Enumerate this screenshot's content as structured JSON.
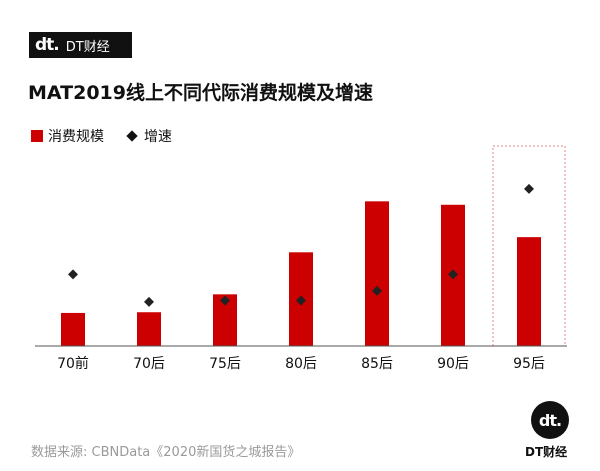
{
  "brand": {
    "logo": "dt.",
    "name": "DT财经"
  },
  "title": "MAT2019线上不同代际消费规模及增速",
  "legend": {
    "bar_label": "消费规模",
    "marker_label": "增速"
  },
  "colors": {
    "bar": "#cc0000",
    "marker": "#222222",
    "axis": "#555555",
    "highlight_border": "#e08a8a"
  },
  "chart_data": {
    "type": "bar",
    "categories": [
      "70前",
      "70后",
      "75后",
      "80后",
      "85后",
      "90后",
      "95后"
    ],
    "series": [
      {
        "name": "消费规模",
        "type": "bar",
        "values": [
          24,
          24.5,
          37.5,
          68,
          105,
          102.5,
          79
        ]
      },
      {
        "name": "增速",
        "type": "scatter",
        "marker": "diamond",
        "values": [
          52,
          32,
          33,
          33,
          40,
          52,
          114
        ]
      }
    ],
    "ylim": [
      0,
      135
    ],
    "highlight_category": "95后",
    "y_axis_visible": false,
    "grid": false
  },
  "footer": {
    "source": "数据来源: CBNData《2020新国货之城报告》"
  },
  "corner_brand": {
    "logo": "dt.",
    "name": "DT财经"
  }
}
